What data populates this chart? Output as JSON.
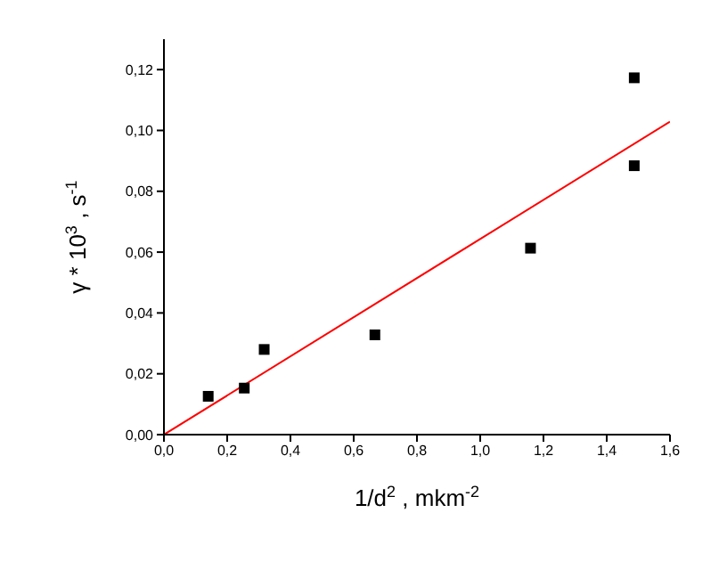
{
  "chart_data": {
    "type": "scatter",
    "xlabel": "1/d$^{2}$ , mkm$^{-2}$",
    "ylabel": "γ * 10$^{3}$ , s$^{-1}$",
    "series": [
      {
        "color": "#000000",
        "marker": "square",
        "x": [
          0.14,
          0.254,
          0.317,
          0.667,
          1.159,
          1.487,
          1.487
        ],
        "values": [
          0.0126,
          0.0153,
          0.028,
          0.0328,
          0.0613,
          0.1173,
          0.0884
        ]
      },
      {
        "type": "line",
        "color": "#ff0000",
        "marker": "none",
        "line_style": "solid",
        "x": [
          0,
          1.6
        ],
        "values": [
          0,
          0.1029
        ]
      }
    ],
    "xlim": [
      0,
      1.6
    ],
    "ylim": [
      0,
      0.13
    ],
    "xticks": [
      {
        "value": 0,
        "label": "0,0"
      },
      {
        "value": 0.2,
        "label": "0,2"
      },
      {
        "value": 0.4,
        "label": "0,4"
      },
      {
        "value": 0.6,
        "label": "0,6"
      },
      {
        "value": 0.8,
        "label": "0,8"
      },
      {
        "value": 1.0,
        "label": "1,0"
      },
      {
        "value": 1.2,
        "label": "1,2"
      },
      {
        "value": 1.4,
        "label": "1,4"
      },
      {
        "value": 1.6,
        "label": "1,6"
      }
    ],
    "yticks": [
      {
        "value": 0,
        "label": "0,00"
      },
      {
        "value": 0.02,
        "label": "0,02"
      },
      {
        "value": 0.04,
        "label": "0,04"
      },
      {
        "value": 0.06,
        "label": "0,06"
      },
      {
        "value": 0.08,
        "label": "0,08"
      },
      {
        "value": 0.1,
        "label": "0,10"
      },
      {
        "value": 0.12,
        "label": "0,12"
      }
    ],
    "grid": false,
    "legend": false
  }
}
